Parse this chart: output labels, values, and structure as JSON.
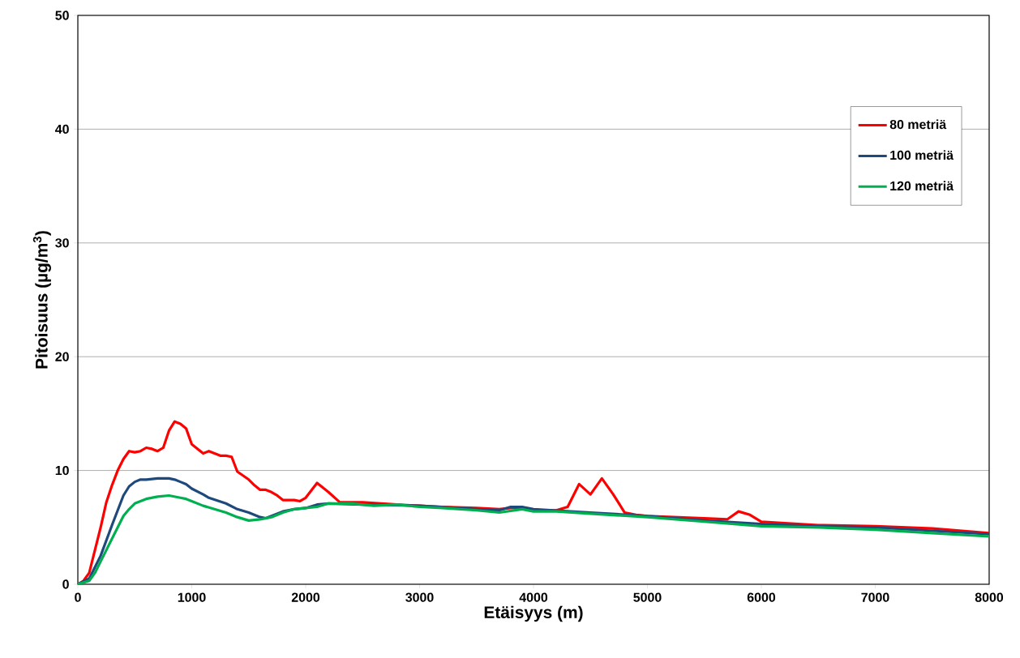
{
  "chart_data": {
    "type": "line",
    "xlabel": "Etäisyys (m)",
    "ylabel": "Pitoisuus (µg/m$^{3}$)",
    "xlim": [
      0,
      8000
    ],
    "ylim": [
      0,
      50
    ],
    "xticks": [
      0,
      1000,
      2000,
      3000,
      4000,
      5000,
      6000,
      7000,
      8000
    ],
    "yticks": [
      0,
      10,
      20,
      30,
      40,
      50
    ],
    "grid": "y",
    "legend": "top right",
    "marker": "none",
    "line_style": "solid",
    "series": [
      {
        "name": "80 metriä",
        "color": "#ff0000",
        "x": [
          0,
          50,
          100,
          150,
          200,
          250,
          300,
          350,
          400,
          450,
          500,
          550,
          600,
          650,
          700,
          750,
          800,
          850,
          900,
          950,
          1000,
          1100,
          1150,
          1200,
          1250,
          1300,
          1350,
          1400,
          1500,
          1550,
          1600,
          1650,
          1700,
          1750,
          1800,
          1900,
          1950,
          2000,
          2100,
          2200,
          2300,
          2500,
          2800,
          3000,
          3200,
          3500,
          3700,
          3800,
          3900,
          4000,
          4200,
          4300,
          4400,
          4500,
          4600,
          4700,
          4800,
          4900,
          5000,
          5500,
          5700,
          5800,
          5900,
          6000,
          6500,
          7000,
          7500,
          8000
        ],
        "values": [
          0,
          0.3,
          1,
          3,
          5,
          7.2,
          8.7,
          10,
          11,
          11.7,
          11.6,
          11.7,
          12,
          11.9,
          11.7,
          12,
          13.5,
          14.3,
          14.1,
          13.7,
          12.3,
          11.5,
          11.7,
          11.5,
          11.3,
          11.3,
          11.2,
          9.9,
          9.2,
          8.7,
          8.3,
          8.3,
          8.1,
          7.8,
          7.4,
          7.4,
          7.3,
          7.6,
          8.9,
          8.1,
          7.2,
          7.2,
          7.0,
          6.9,
          6.8,
          6.7,
          6.6,
          6.7,
          6.7,
          6.5,
          6.5,
          6.8,
          8.8,
          7.9,
          9.3,
          7.9,
          6.3,
          6.1,
          6.0,
          5.8,
          5.7,
          6.4,
          6.1,
          5.5,
          5.2,
          5.1,
          4.9,
          4.5
        ]
      },
      {
        "name": "100 metriä",
        "color": "#1f497d",
        "x": [
          0,
          100,
          200,
          300,
          350,
          400,
          450,
          500,
          550,
          600,
          700,
          800,
          850,
          900,
          950,
          1000,
          1100,
          1150,
          1300,
          1400,
          1500,
          1600,
          1650,
          1700,
          1800,
          1900,
          2000,
          2100,
          2200,
          2500,
          3000,
          3500,
          3700,
          3800,
          3900,
          4000,
          4500,
          5000,
          5500,
          6000,
          6500,
          7000,
          7500,
          8000
        ],
        "values": [
          0,
          0.5,
          2.5,
          5.2,
          6.5,
          7.8,
          8.6,
          9.0,
          9.2,
          9.2,
          9.3,
          9.3,
          9.2,
          9.0,
          8.8,
          8.4,
          7.9,
          7.6,
          7.1,
          6.6,
          6.3,
          5.9,
          5.8,
          6.0,
          6.4,
          6.6,
          6.7,
          7.0,
          7.1,
          7.0,
          6.9,
          6.6,
          6.5,
          6.8,
          6.8,
          6.6,
          6.3,
          6.0,
          5.6,
          5.3,
          5.1,
          5.0,
          4.7,
          4.4
        ]
      },
      {
        "name": "120 metriä",
        "color": "#00b050",
        "x": [
          0,
          100,
          150,
          200,
          250,
          300,
          350,
          400,
          450,
          500,
          600,
          700,
          800,
          900,
          950,
          1000,
          1100,
          1200,
          1300,
          1400,
          1500,
          1600,
          1700,
          1800,
          1900,
          2000,
          2100,
          2200,
          2400,
          2600,
          2800,
          3000,
          3200,
          3500,
          3700,
          3900,
          4000,
          4200,
          4500,
          5000,
          5500,
          6000,
          6500,
          7000,
          7500,
          8000
        ],
        "values": [
          0,
          0.3,
          1,
          2,
          3,
          4,
          5,
          6,
          6.6,
          7.1,
          7.5,
          7.7,
          7.8,
          7.6,
          7.5,
          7.3,
          6.9,
          6.6,
          6.3,
          5.9,
          5.6,
          5.7,
          5.9,
          6.3,
          6.6,
          6.7,
          6.8,
          7.1,
          7.1,
          6.9,
          7.0,
          6.8,
          6.7,
          6.5,
          6.3,
          6.6,
          6.4,
          6.4,
          6.2,
          5.9,
          5.5,
          5.1,
          5.0,
          4.8,
          4.5,
          4.2
        ]
      }
    ]
  }
}
